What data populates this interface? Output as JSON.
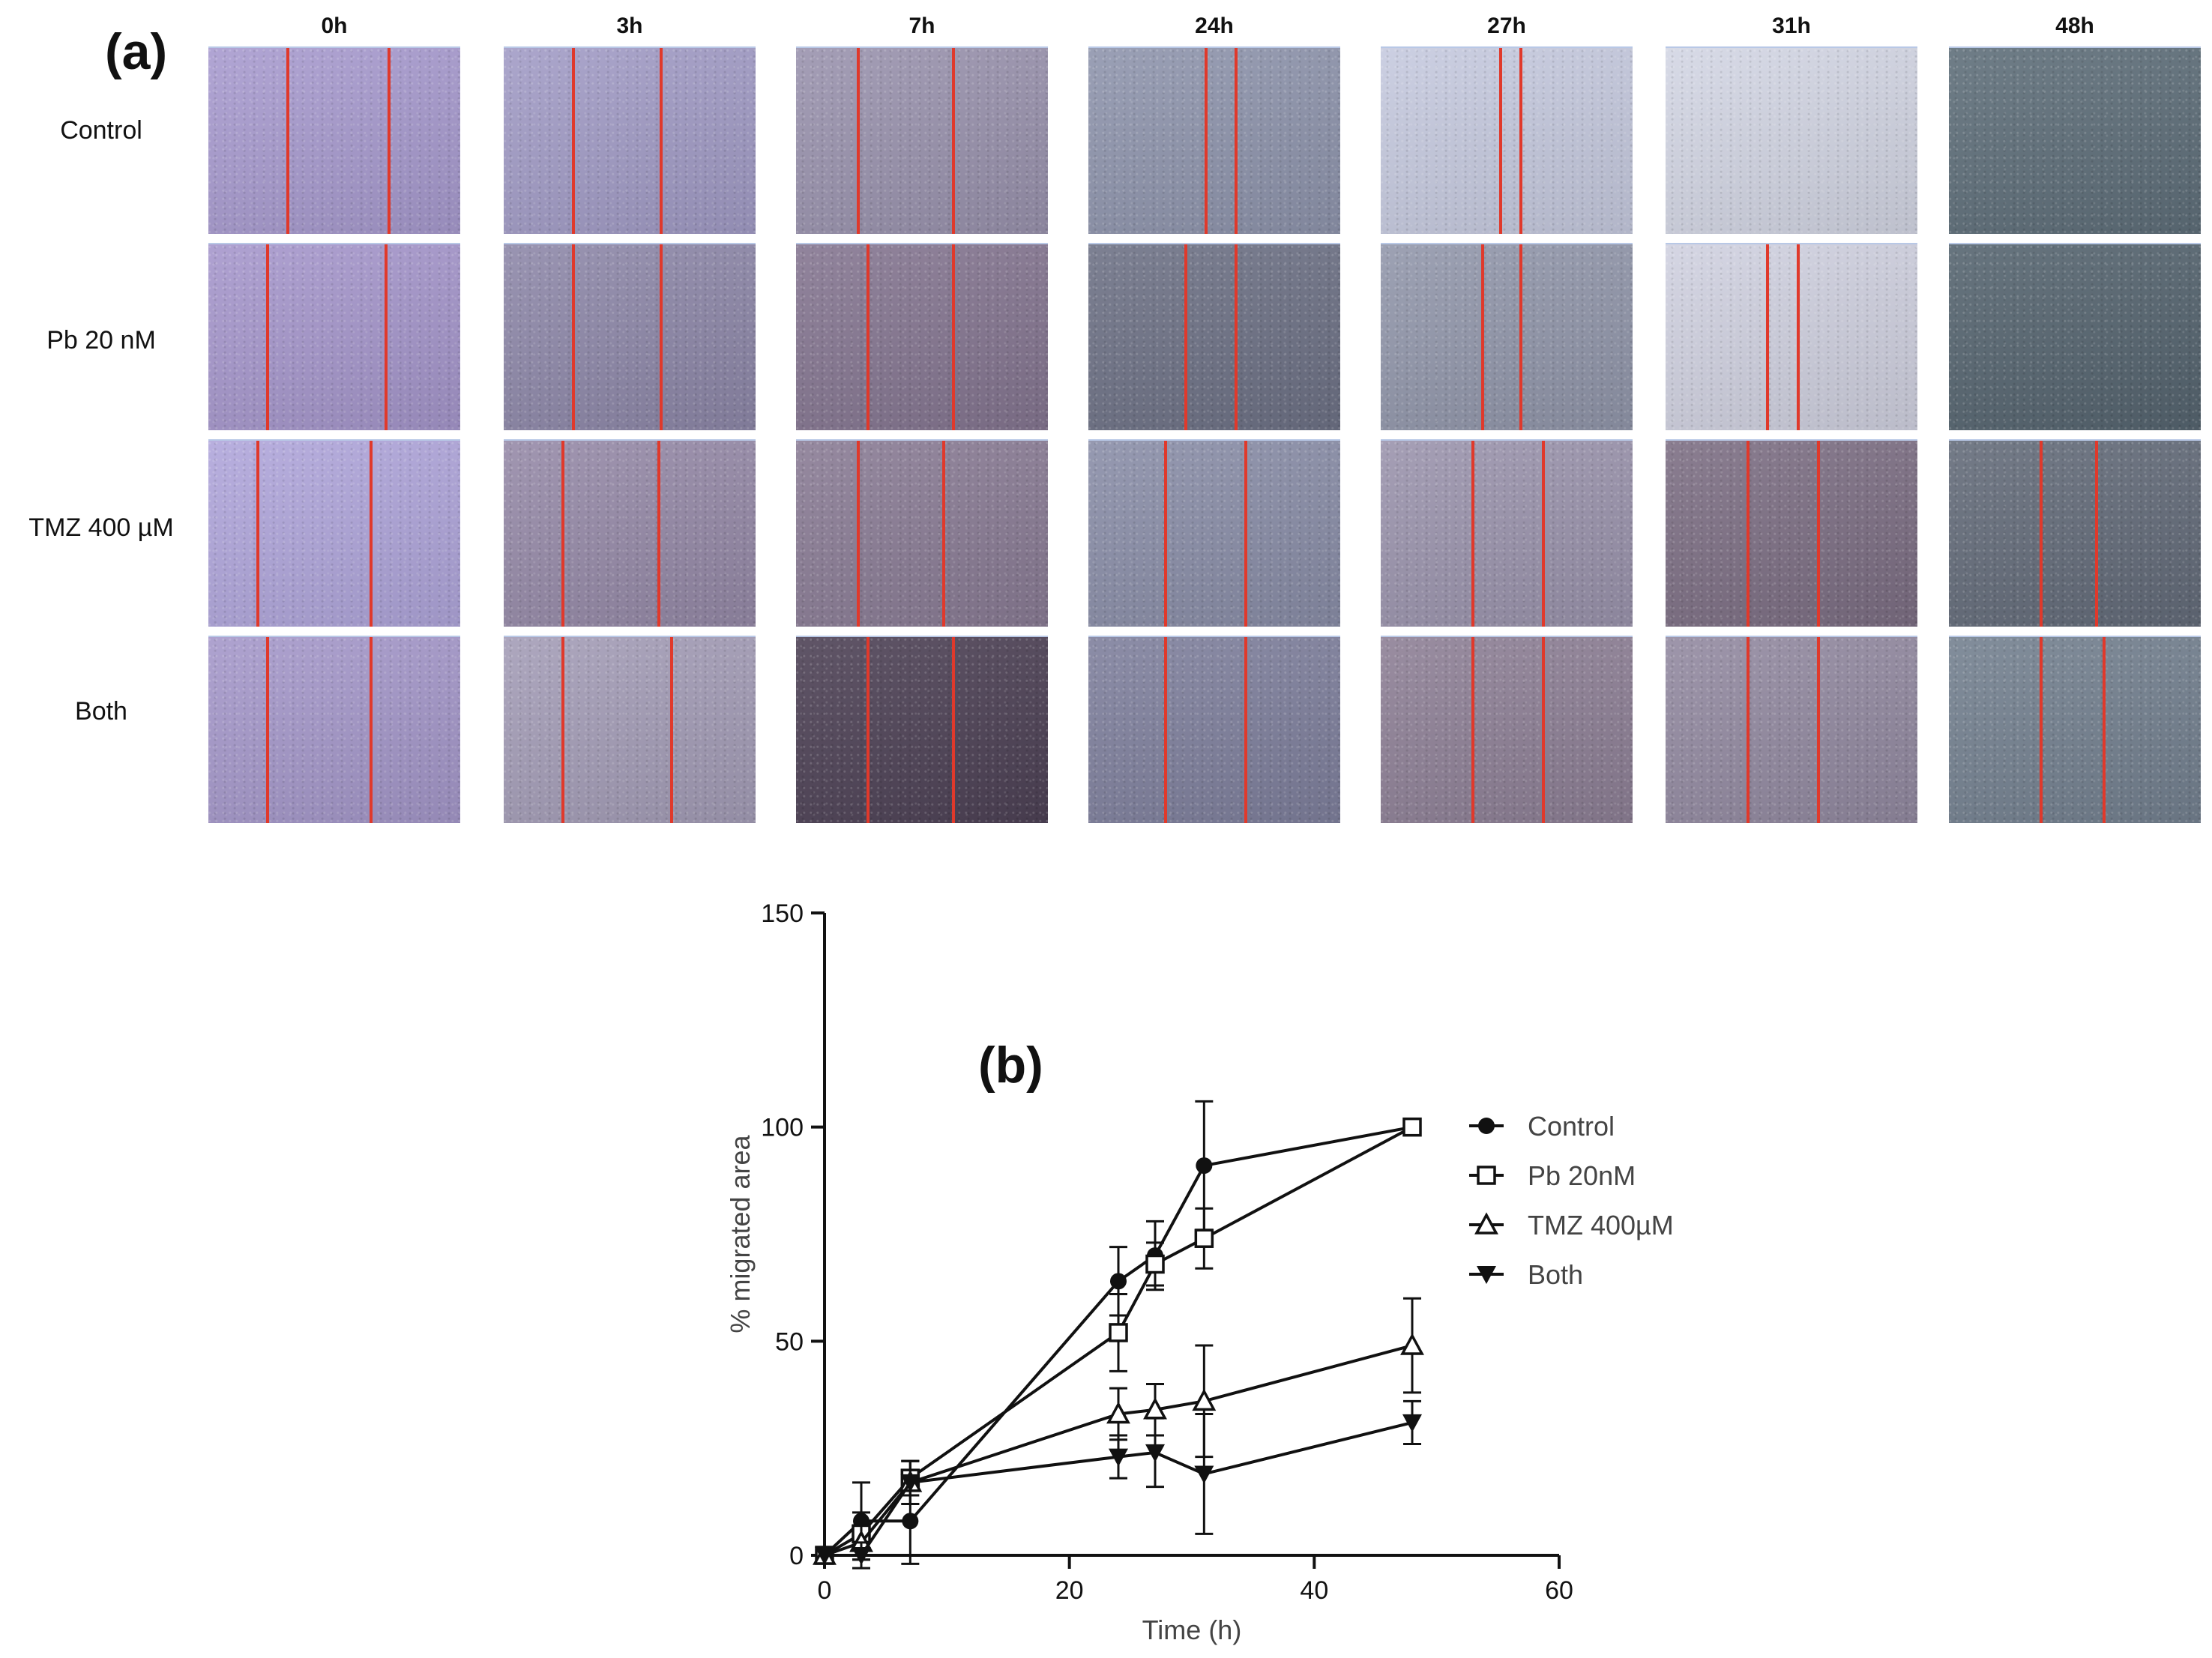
{
  "figure": {
    "panel_a_label": "(a)",
    "panel_b_label": "(b)",
    "time_points": [
      "0h",
      "3h",
      "7h",
      "24h",
      "27h",
      "31h",
      "48h"
    ],
    "conditions": [
      "Control",
      "Pb 20 nM",
      "TMZ 400 µM",
      "Both"
    ],
    "micrographs": {
      "tints": [
        [
          "#a89bcf",
          "#a29cc6",
          "#9a93ae",
          "#8f95ad",
          "#c6cadf",
          "#d3d6e4",
          "#5f6f7a"
        ],
        [
          "#a697cc",
          "#8e88a9",
          "#857691",
          "#6e7286",
          "#9297ab",
          "#d0d1e0",
          "#566570"
        ],
        [
          "#b0a6db",
          "#968aa8",
          "#8a7c95",
          "#8a8ea8",
          "#9b94ad",
          "#7d6f84",
          "#646c7a"
        ],
        [
          "#a598ca",
          "#a49db7",
          "#4e4256",
          "#7f809d",
          "#8e8096",
          "#938aa1",
          "#748190"
        ]
      ],
      "scratch_edges": [
        [
          [
            0.31,
            0.71
          ],
          [
            0.27,
            0.62
          ],
          [
            0.24,
            0.62
          ],
          [
            0.46,
            0.58
          ],
          [
            0.47,
            0.55
          ],
          null,
          null
        ],
        [
          [
            0.23,
            0.7
          ],
          [
            0.27,
            0.62
          ],
          [
            0.28,
            0.62
          ],
          [
            0.38,
            0.58
          ],
          [
            0.4,
            0.55
          ],
          [
            0.4,
            0.52
          ],
          null
        ],
        [
          [
            0.19,
            0.64
          ],
          [
            0.23,
            0.61
          ],
          [
            0.24,
            0.58
          ],
          [
            0.3,
            0.62
          ],
          [
            0.36,
            0.64
          ],
          [
            0.32,
            0.6
          ],
          [
            0.36,
            0.58
          ]
        ],
        [
          [
            0.23,
            0.64
          ],
          [
            0.23,
            0.66
          ],
          [
            0.28,
            0.62
          ],
          [
            0.3,
            0.62
          ],
          [
            0.36,
            0.64
          ],
          [
            0.32,
            0.6
          ],
          [
            0.36,
            0.61
          ]
        ]
      ]
    }
  },
  "chart_data": {
    "type": "line",
    "title": "(b)",
    "xlabel": "Time (h)",
    "ylabel": "% migrated area",
    "xlim": [
      0,
      60
    ],
    "ylim": [
      0,
      150
    ],
    "xticks": [
      0,
      20,
      40,
      60
    ],
    "yticks": [
      0,
      50,
      100,
      150
    ],
    "x": [
      0,
      3,
      7,
      24,
      27,
      31,
      48
    ],
    "legend_position": "right",
    "series": [
      {
        "name": "Control",
        "marker": "filled-circle",
        "values": [
          0,
          8,
          8,
          64,
          70,
          91,
          100
        ],
        "errors": [
          0,
          9,
          10,
          8,
          8,
          15,
          0
        ]
      },
      {
        "name": "Pb 20nM",
        "marker": "open-square",
        "values": [
          0,
          5,
          18,
          52,
          68,
          74,
          100
        ],
        "errors": [
          0,
          5,
          4,
          9,
          5,
          7,
          0
        ]
      },
      {
        "name": "TMZ 400µM",
        "marker": "open-triangle",
        "values": [
          0,
          3,
          17,
          33,
          34,
          36,
          49
        ],
        "errors": [
          0,
          4,
          5,
          6,
          6,
          13,
          11
        ]
      },
      {
        "name": "Both",
        "marker": "filled-down-triangle",
        "values": [
          0,
          0,
          17,
          23,
          24,
          19,
          31
        ],
        "errors": [
          0,
          3,
          5,
          5,
          8,
          14,
          5
        ]
      }
    ]
  }
}
